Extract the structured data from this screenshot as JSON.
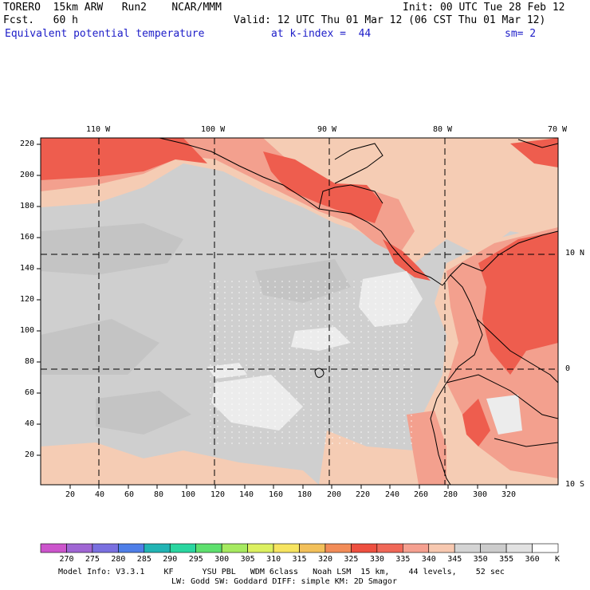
{
  "header": {
    "model": "TORERO  15km ARW   Run2    NCAR/MMM",
    "init": "Init: 00 UTC Tue 28 Feb 12",
    "forecast": "Fcst.   60 h",
    "valid": "Valid: 12 UTC Thu 01 Mar 12 (06 CST Thu 01 Mar 12)",
    "field": "Equivalent potential temperature",
    "level": "at k-index =  44",
    "smoothing": "sm= 2"
  },
  "map": {
    "top_lon_labels": [
      "110 W",
      "100 W",
      "90 W",
      "80 W",
      "70 W"
    ],
    "right_lat_labels": [
      "10 N",
      "0",
      "10 S"
    ],
    "left_y_ticks": [
      "220",
      "200",
      "180",
      "160",
      "140",
      "120",
      "100",
      "80",
      "60",
      "40",
      "20"
    ],
    "bottom_x_ticks": [
      "20",
      "40",
      "60",
      "80",
      "100",
      "120",
      "140",
      "160",
      "180",
      "200",
      "220",
      "240",
      "260",
      "280",
      "300",
      "320"
    ]
  },
  "colorbar": {
    "colors": [
      "#cc55cc",
      "#a066d4",
      "#7a70e0",
      "#4f7fe8",
      "#22b4b4",
      "#2ad6a0",
      "#5ee06e",
      "#a6ea60",
      "#dcf060",
      "#f6e460",
      "#f2c05a",
      "#f28c58",
      "#ee5040",
      "#f06858",
      "#f5a090",
      "#f7c8b0",
      "#d4d4d4",
      "#cccccc",
      "#e2e2e2",
      "#ffffff"
    ],
    "labels": [
      "270",
      "275",
      "280",
      "285",
      "290",
      "295",
      "300",
      "305",
      "310",
      "315",
      "320",
      "325",
      "330",
      "335",
      "340",
      "345",
      "350",
      "355",
      "360"
    ],
    "unit": "K"
  },
  "footer": {
    "line1": "Model Info: V3.3.1    KF      YSU PBL   WDM 6class   Noah LSM  15 km,    44 levels,    52 sec",
    "line2": "LW: Godd SW: Goddard DIFF: simple KM: 2D Smagor"
  }
}
